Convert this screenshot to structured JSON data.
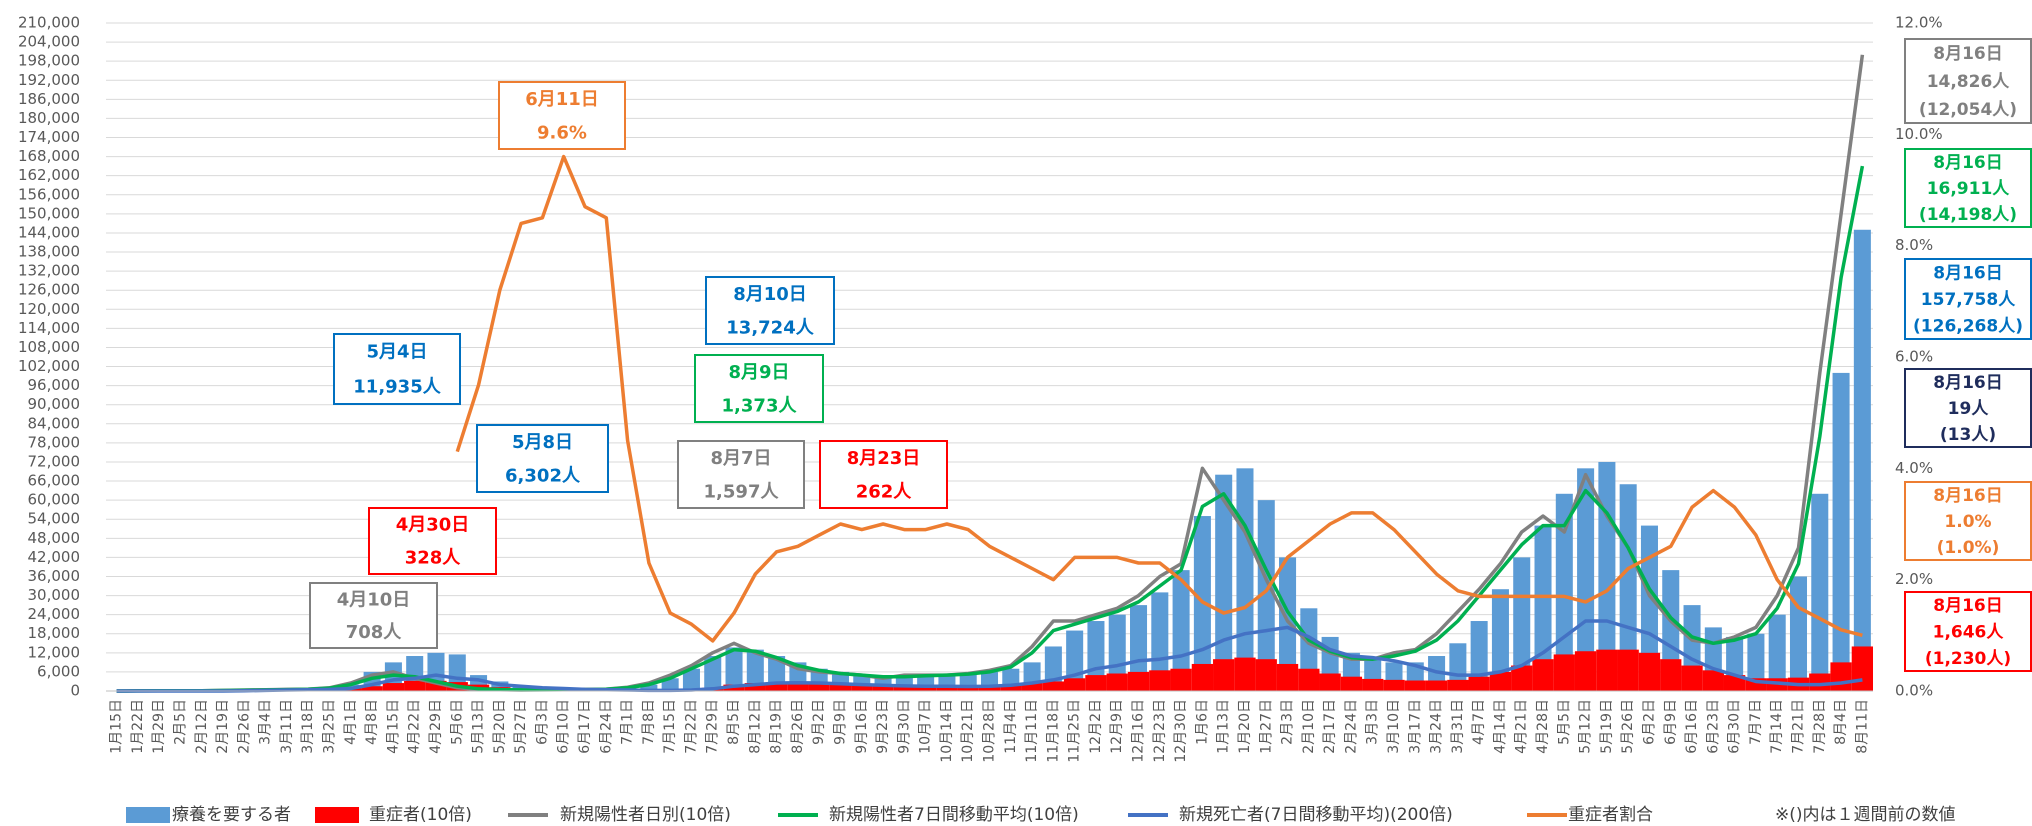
{
  "chart_data": {
    "type": "combo",
    "categories": [
      "1月15日",
      "1月22日",
      "1月29日",
      "2月5日",
      "2月12日",
      "2月19日",
      "2月26日",
      "3月4日",
      "3月11日",
      "3月18日",
      "3月25日",
      "4月1日",
      "4月8日",
      "4月15日",
      "4月22日",
      "4月29日",
      "5月6日",
      "5月13日",
      "5月20日",
      "5月27日",
      "6月3日",
      "6月10日",
      "6月17日",
      "6月24日",
      "7月1日",
      "7月8日",
      "7月15日",
      "7月22日",
      "7月29日",
      "8月5日",
      "8月12日",
      "8月19日",
      "8月26日",
      "9月2日",
      "9月9日",
      "9月16日",
      "9月23日",
      "9月30日",
      "10月7日",
      "10月14日",
      "10月21日",
      "10月28日",
      "11月4日",
      "11月11日",
      "11月18日",
      "11月25日",
      "12月2日",
      "12月9日",
      "12月16日",
      "12月23日",
      "12月30日",
      "1月6日",
      "1月13日",
      "1月20日",
      "1月27日",
      "2月3日",
      "2月10日",
      "2月17日",
      "2月24日",
      "3月3日",
      "3月10日",
      "3月17日",
      "3月24日",
      "3月31日",
      "4月7日",
      "4月14日",
      "4月21日",
      "4月28日",
      "5月5日",
      "5月12日",
      "5月19日",
      "5月26日",
      "6月2日",
      "6月9日",
      "6月16日",
      "6月23日",
      "6月30日",
      "7月7日",
      "7月14日",
      "7月21日",
      "7月28日",
      "8月4日",
      "8月11日"
    ],
    "series": [
      {
        "name": "療養を要する者",
        "kind": "bar",
        "color": "#5b9bd5",
        "values": [
          0,
          0,
          0,
          0,
          0,
          0,
          100,
          200,
          300,
          500,
          800,
          2000,
          6000,
          9000,
          11000,
          12000,
          11500,
          5000,
          3000,
          1500,
          1000,
          900,
          800,
          900,
          1000,
          2000,
          4000,
          7000,
          11000,
          13700,
          13000,
          11000,
          9000,
          7000,
          6000,
          5000,
          5000,
          5000,
          5000,
          5000,
          5500,
          6000,
          7000,
          9000,
          14000,
          19000,
          22000,
          24000,
          27000,
          31000,
          38000,
          55000,
          68000,
          70000,
          60000,
          42000,
          26000,
          17000,
          12000,
          10000,
          9000,
          9000,
          11000,
          15000,
          22000,
          32000,
          42000,
          52000,
          62000,
          70000,
          72000,
          65000,
          52000,
          38000,
          27000,
          20000,
          17000,
          18000,
          24000,
          36000,
          62000,
          100000,
          145000
        ]
      },
      {
        "name": "重症者(10倍)",
        "kind": "area",
        "color": "#ff0000",
        "values": [
          0,
          0,
          0,
          0,
          0,
          0,
          0,
          0,
          100,
          200,
          400,
          800,
          1500,
          2500,
          3200,
          3200,
          2800,
          2000,
          1200,
          700,
          500,
          400,
          400,
          400,
          400,
          400,
          500,
          700,
          1000,
          2000,
          2500,
          2600,
          2400,
          2200,
          2000,
          1800,
          1700,
          1600,
          1500,
          1500,
          1600,
          1800,
          2000,
          2500,
          3000,
          4000,
          5000,
          5500,
          6000,
          6500,
          7000,
          8500,
          10000,
          10500,
          10000,
          8500,
          7000,
          5500,
          4500,
          3800,
          3500,
          3300,
          3300,
          3500,
          4500,
          6000,
          8000,
          10000,
          11500,
          12500,
          13000,
          13000,
          12000,
          10000,
          8000,
          6500,
          5000,
          4000,
          4000,
          4200,
          5500,
          9000,
          14000
        ]
      },
      {
        "name": "新規陽性者日別(10倍)",
        "kind": "line",
        "color": "#808080",
        "values": [
          0,
          50,
          100,
          100,
          100,
          200,
          300,
          400,
          500,
          600,
          1000,
          2500,
          5000,
          6000,
          4000,
          2500,
          1000,
          500,
          400,
          300,
          400,
          400,
          500,
          600,
          1200,
          2500,
          5000,
          8000,
          12000,
          15000,
          12000,
          10000,
          7000,
          6000,
          5500,
          5000,
          4000,
          5000,
          5000,
          5000,
          5500,
          6500,
          8000,
          14000,
          22000,
          22000,
          24000,
          26000,
          30000,
          36000,
          40000,
          70000,
          60000,
          50000,
          35000,
          22000,
          15000,
          12000,
          10000,
          10000,
          12000,
          13000,
          18000,
          25000,
          32000,
          40000,
          50000,
          55000,
          50000,
          68000,
          55000,
          45000,
          30000,
          22000,
          16000,
          15000,
          17000,
          20000,
          30000,
          45000,
          100000,
          150000,
          200000
        ]
      },
      {
        "name": "新規陽性者7日間移動平均(10倍)",
        "kind": "line",
        "color": "#00b050",
        "values": [
          0,
          30,
          80,
          100,
          100,
          150,
          250,
          350,
          450,
          550,
          900,
          2000,
          4000,
          5000,
          4500,
          3000,
          1500,
          700,
          450,
          350,
          350,
          400,
          450,
          550,
          1000,
          2000,
          4000,
          7000,
          10000,
          13000,
          12500,
          10500,
          8000,
          6500,
          5500,
          5000,
          4500,
          4500,
          4800,
          5000,
          5300,
          6000,
          7500,
          12000,
          19000,
          21000,
          23000,
          25000,
          28000,
          33000,
          38000,
          58000,
          62000,
          52000,
          38000,
          25000,
          16000,
          12500,
          10500,
          10000,
          11000,
          12500,
          16000,
          22000,
          30000,
          38000,
          46000,
          52000,
          52000,
          63000,
          56000,
          45000,
          32000,
          23000,
          17000,
          15000,
          16000,
          18000,
          26000,
          40000,
          80000,
          130000,
          165000
        ]
      },
      {
        "name": "新規死亡者(7日間移動平均)(200倍)",
        "kind": "line",
        "color": "#4472c4",
        "values": [
          0,
          0,
          0,
          0,
          0,
          0,
          100,
          200,
          300,
          400,
          500,
          800,
          2000,
          3500,
          4000,
          5000,
          4000,
          3500,
          2000,
          1500,
          1000,
          800,
          500,
          400,
          300,
          200,
          200,
          300,
          700,
          1500,
          2000,
          2500,
          2600,
          2500,
          2300,
          2000,
          1800,
          1600,
          1500,
          1500,
          1400,
          1500,
          1800,
          2500,
          3500,
          5000,
          7000,
          8000,
          9500,
          10000,
          11000,
          13000,
          16000,
          18000,
          19000,
          20000,
          17000,
          13000,
          11000,
          10500,
          9500,
          8000,
          6000,
          5000,
          5000,
          6000,
          8000,
          12000,
          17000,
          22000,
          22000,
          20000,
          18000,
          14000,
          10000,
          7000,
          5000,
          3000,
          2500,
          2000,
          2000,
          2500,
          3500
        ]
      },
      {
        "name": "重症者割合",
        "kind": "line",
        "axis": "y2",
        "color": "#ed7d31",
        "values": [
          null,
          null,
          null,
          null,
          null,
          null,
          null,
          null,
          null,
          null,
          null,
          null,
          null,
          null,
          null,
          null,
          4.3,
          5.5,
          7.2,
          8.4,
          8.5,
          9.6,
          8.7,
          8.5,
          4.5,
          2.3,
          1.4,
          1.2,
          0.9,
          1.4,
          2.1,
          2.5,
          2.6,
          2.8,
          3.0,
          2.9,
          3.0,
          2.9,
          2.9,
          3.0,
          2.9,
          2.6,
          2.4,
          2.2,
          2.0,
          2.4,
          2.4,
          2.4,
          2.3,
          2.3,
          2.0,
          1.6,
          1.4,
          1.5,
          1.8,
          2.4,
          2.7,
          3.0,
          3.2,
          3.2,
          2.9,
          2.5,
          2.1,
          1.8,
          1.7,
          1.7,
          1.7,
          1.7,
          1.7,
          1.6,
          1.8,
          2.2,
          2.4,
          2.6,
          3.3,
          3.6,
          3.3,
          2.8,
          2.0,
          1.5,
          1.3,
          1.1,
          1.0
        ]
      }
    ],
    "ylim": [
      0,
      210000
    ],
    "yticks": [
      0,
      {
        "value": 6000,
        "label": "6,000"
      },
      {
        "value": 12000,
        "label": "12,000"
      },
      {
        "value": 18000,
        "label": "18,000"
      },
      {
        "value": 24000,
        "label": "24,000"
      },
      {
        "value": 30000,
        "label": "30,000"
      },
      {
        "value": 36000,
        "label": "36,000"
      },
      {
        "value": 42000,
        "label": "42,000"
      },
      {
        "value": 48000,
        "label": "48,000"
      },
      {
        "value": 54000,
        "label": "54,000"
      },
      {
        "value": 60000,
        "label": "60,000"
      },
      {
        "value": 66000,
        "label": "66,000"
      },
      {
        "value": 72000,
        "label": "72,000"
      },
      {
        "value": 78000,
        "label": "78,000"
      },
      {
        "value": 84000,
        "label": "84,000"
      },
      {
        "value": 90000,
        "label": "90,000"
      },
      {
        "value": 96000,
        "label": "96,000"
      },
      {
        "value": 102000,
        "label": "102,000"
      },
      {
        "value": 108000,
        "label": "108,000"
      },
      {
        "value": 114000,
        "label": "114,000"
      },
      {
        "value": 120000,
        "label": "120,000"
      },
      {
        "value": 126000,
        "label": "126,000"
      },
      {
        "value": 132000,
        "label": "132,000"
      },
      {
        "value": 138000,
        "label": "138,000"
      },
      {
        "value": 144000,
        "label": "144,000"
      },
      {
        "value": 150000,
        "label": "150,000"
      },
      {
        "value": 156000,
        "label": "156,000"
      },
      {
        "value": 162000,
        "label": "162,000"
      },
      {
        "value": 168000,
        "label": "168,000"
      },
      {
        "value": 174000,
        "label": "174,000"
      },
      {
        "value": 180000,
        "label": "180,000"
      },
      {
        "value": 186000,
        "label": "186,000"
      },
      {
        "value": 192000,
        "label": "192,000"
      },
      {
        "value": 198000,
        "label": "198,000"
      },
      {
        "value": 204000,
        "label": "204,000"
      },
      {
        "value": 210000,
        "label": "210,000"
      }
    ],
    "y2lim": [
      0,
      12
    ],
    "y2ticks": [
      {
        "value": 0,
        "label": "0.0%"
      },
      {
        "value": 2,
        "label": "2.0%"
      },
      {
        "value": 4,
        "label": "4.0%"
      },
      {
        "value": 6,
        "label": "6.0%"
      },
      {
        "value": 8,
        "label": "8.0%"
      },
      {
        "value": 10,
        "label": "10.0%"
      },
      {
        "value": 12,
        "label": "12.0%"
      }
    ],
    "grid": true,
    "legend": "bottom",
    "annotations": [
      {
        "lines": [
          "6月11日",
          "9.6%"
        ],
        "color": "#ed7d31"
      },
      {
        "lines": [
          "5月4日",
          "11,935人"
        ],
        "color": "#0070c0"
      },
      {
        "lines": [
          "8月10日",
          "13,724人"
        ],
        "color": "#0070c0"
      },
      {
        "lines": [
          "8月9日",
          "1,373人"
        ],
        "color": "#00b050"
      },
      {
        "lines": [
          "5月8日",
          "6,302人"
        ],
        "color": "#0070c0"
      },
      {
        "lines": [
          "8月7日",
          "1,597人"
        ],
        "color": "#808080"
      },
      {
        "lines": [
          "8月23日",
          "262人"
        ],
        "color": "#ff0000"
      },
      {
        "lines": [
          "4月30日",
          "328人"
        ],
        "color": "#ff0000"
      },
      {
        "lines": [
          "4月10日",
          "708人"
        ],
        "color": "#808080"
      }
    ],
    "side_labels": [
      {
        "lines": [
          "8月16日",
          "14,826人",
          "(12,054人)"
        ],
        "color": "#808080"
      },
      {
        "lines": [
          "8月16日",
          "16,911人",
          "(14,198人)"
        ],
        "color": "#00b050"
      },
      {
        "lines": [
          "8月16日",
          "157,758人",
          "(126,268人)"
        ],
        "color": "#0070c0"
      },
      {
        "lines": [
          "8月16日",
          "19人",
          "(13人)"
        ],
        "color": "#1f2d5c"
      },
      {
        "lines": [
          "8月16日",
          "1.0%",
          "(1.0%)"
        ],
        "color": "#ed7d31"
      },
      {
        "lines": [
          "8月16日",
          "1,646人",
          "(1,230人)"
        ],
        "color": "#ff0000"
      }
    ],
    "footnote": "※()内は１週間前の数値"
  }
}
